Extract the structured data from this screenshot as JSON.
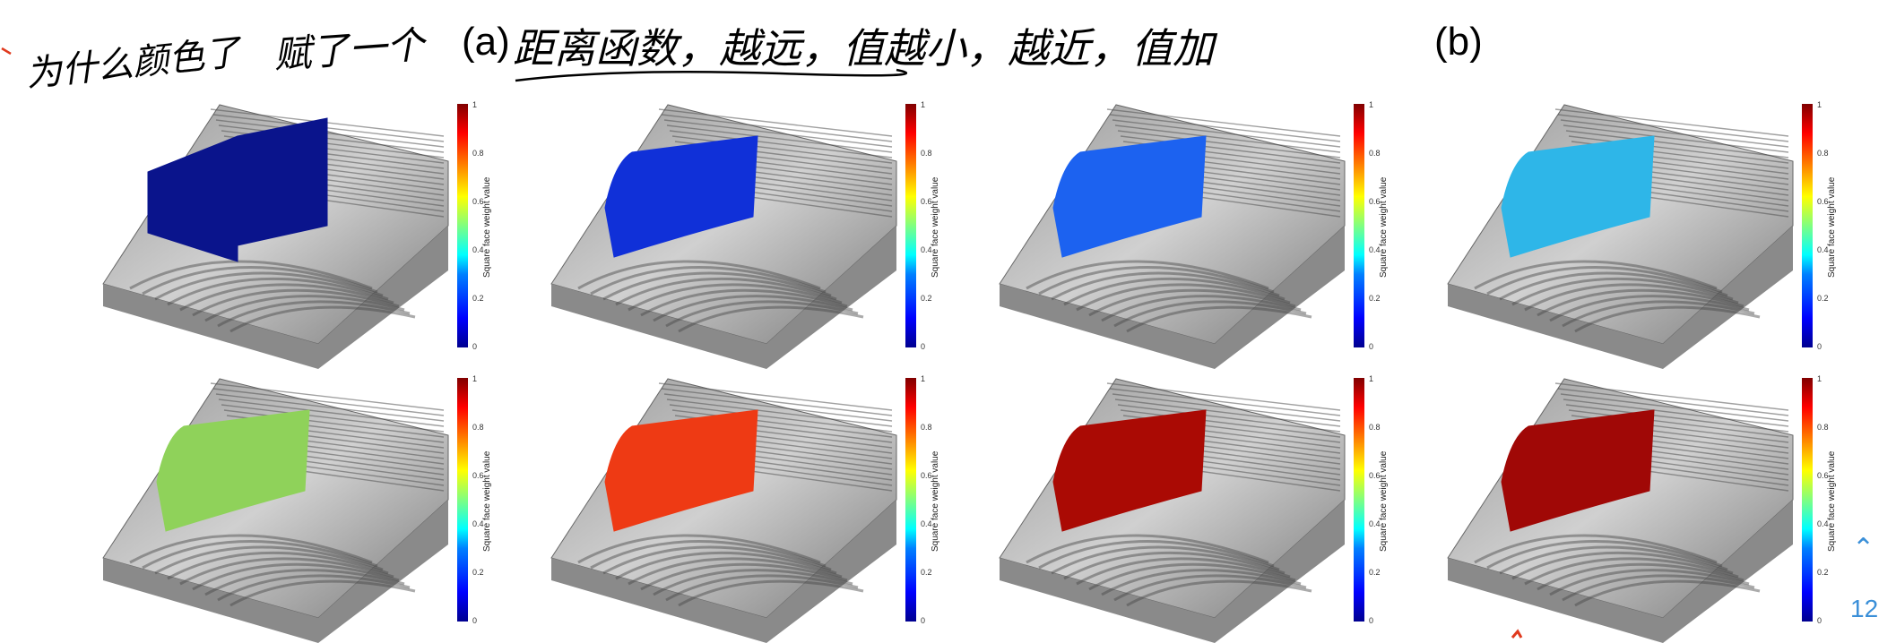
{
  "annotation": {
    "left_note": "为什么颜色了",
    "note2": "赋了一个",
    "label_a": "(a)",
    "note3": "距离函数，越远，值越小，越近，值加",
    "label_b": "(b)"
  },
  "colorbar": {
    "label": "Square face weight value",
    "ticks": [
      "0",
      "0.2",
      "0.4",
      "0.6",
      "0.8",
      "1"
    ]
  },
  "panels": [
    {
      "fault_color": "#0a148c"
    },
    {
      "fault_color": "#1030d8"
    },
    {
      "fault_color": "#1c62f0"
    },
    {
      "fault_color": "#2eb6e8"
    },
    {
      "fault_color": "#8fd25a"
    },
    {
      "fault_color": "#ee3a14"
    },
    {
      "fault_color": "#aa0a04"
    },
    {
      "fault_color": "#a00806"
    }
  ],
  "page_nav": {
    "up_icon": "chevron-up-icon",
    "page_number": "12"
  }
}
